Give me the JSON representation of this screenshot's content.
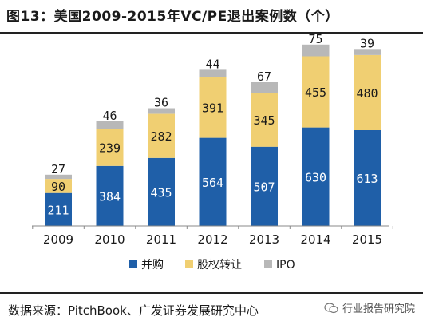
{
  "title": "图13：美国2009-2015年VC/PE退出案例数（个）",
  "source": "数据来源：PitchBook、广发证券发展研究中心",
  "watermark": "行业报告研究院",
  "watermark_icon": "wechat-bubble-icon",
  "colors": {
    "merger": "#1f5fa8",
    "equity_transfer": "#f0cf72",
    "ipo": "#b8b8b8",
    "axis": "#888888",
    "label_dark": "#1a1a1a",
    "label_light": "#ffffff"
  },
  "legend": [
    {
      "name": "并购",
      "color": "#1f5fa8"
    },
    {
      "name": "股权转让",
      "color": "#f0cf72"
    },
    {
      "name": "IPO",
      "color": "#b8b8b8"
    }
  ],
  "chart_data": {
    "type": "bar",
    "stacked": true,
    "categories": [
      "2009",
      "2010",
      "2011",
      "2012",
      "2013",
      "2014",
      "2015"
    ],
    "series": [
      {
        "name": "并购",
        "values": [
          211,
          384,
          435,
          564,
          507,
          630,
          613
        ]
      },
      {
        "name": "股权转让",
        "values": [
          90,
          239,
          282,
          391,
          345,
          455,
          480
        ]
      },
      {
        "name": "IPO",
        "values": [
          27,
          46,
          36,
          44,
          67,
          75,
          39
        ]
      }
    ],
    "title": "图13：美国2009-2015年VC/PE退出案例数（个）",
    "xlabel": "",
    "ylabel": "",
    "ylim": [
      0,
      1200
    ],
    "grid": false,
    "legend_position": "bottom"
  }
}
